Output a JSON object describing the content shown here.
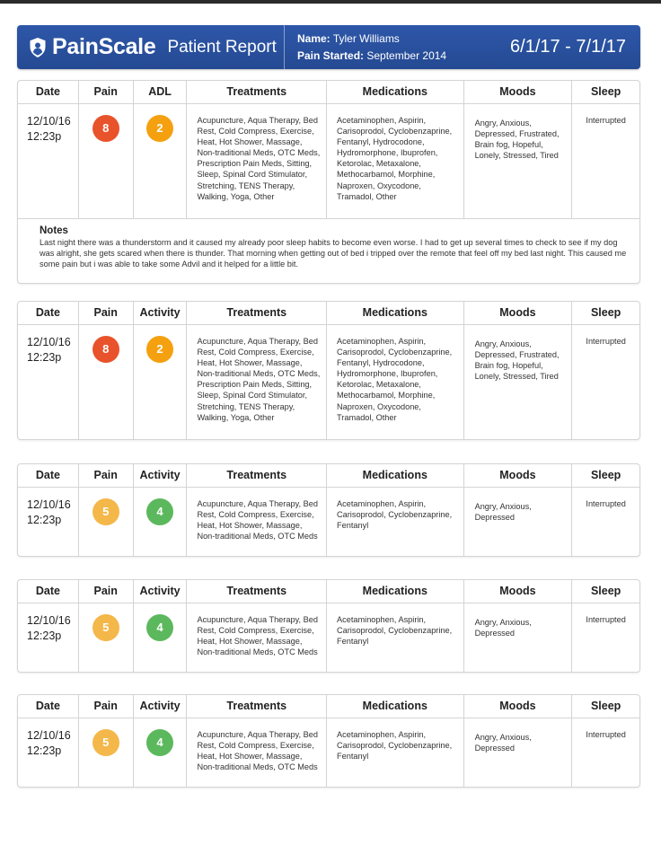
{
  "header": {
    "brand_name": "PainScale",
    "brand_sub": "Patient Report",
    "name_label": "Name:",
    "name_value": "Tyler Williams",
    "pain_started_label": "Pain Started:",
    "pain_started_value": "September 2014",
    "date_range": "6/1/17 - 7/1/17",
    "color": "#2b55a6"
  },
  "columns": {
    "date": "Date",
    "pain": "Pain",
    "treatments": "Treatments",
    "medications": "Medications",
    "moods": "Moods",
    "sleep": "Sleep"
  },
  "pain_colors": {
    "8": "#e8532c",
    "5": "#f4b74a",
    "2": "#f5a623",
    "4": "#5cb85c"
  },
  "entries": [
    {
      "activity_header": "ADL",
      "date": "12/10/16",
      "time": "12:23p",
      "pain": "8",
      "pain_color": "#e8532c",
      "activity": "2",
      "activity_color": "#f5a00f",
      "treatments": "Acupuncture, Aqua Therapy, Bed Rest, Cold Compress, Exercise, Heat, Hot Shower, Massage, Non-traditional Meds, OTC Meds, Prescription Pain Meds, Sitting, Sleep, Spinal Cord Stimulator, Stretching, TENS Therapy, Walking, Yoga, Other",
      "medications": "Acetaminophen, Aspirin, Carisoprodol, Cyclobenzaprine, Fentanyl, Hydrocodone, Hydromorphone, Ibuprofen, Ketorolac, Metaxalone, Methocarbamol, Morphine, Naproxen, Oxycodone, Tramadol, Other",
      "moods": "Angry, Anxious, Depressed, Frustrated, Brain fog, Hopeful, Lonely, Stressed, Tired",
      "sleep": "Interrupted",
      "notes_title": "Notes",
      "notes": "Last night there was a thunderstorm and it caused my already poor sleep habits to become even worse. I had to get up several times to check to see if my dog was alright, she gets scared when there is thunder. That morning when getting out of bed i tripped over the remote that feel off my bed last night. This caused me some pain but i was able to take some Advil and it helped for a little bit."
    },
    {
      "activity_header": "Activity",
      "date": "12/10/16",
      "time": "12:23p",
      "pain": "8",
      "pain_color": "#e8532c",
      "activity": "2",
      "activity_color": "#f5a00f",
      "treatments": "Acupuncture, Aqua Therapy, Bed Rest, Cold Compress, Exercise, Heat, Hot Shower, Massage, Non-traditional Meds, OTC Meds, Prescription Pain Meds, Sitting, Sleep, Spinal Cord Stimulator, Stretching, TENS Therapy, Walking, Yoga, Other",
      "medications": "Acetaminophen, Aspirin, Carisoprodol, Cyclobenzaprine, Fentanyl, Hydrocodone, Hydromorphone, Ibuprofen, Ketorolac, Metaxalone, Methocarbamol, Morphine, Naproxen, Oxycodone, Tramadol, Other",
      "moods": "Angry, Anxious, Depressed, Frustrated, Brain fog, Hopeful, Lonely, Stressed, Tired",
      "sleep": "Interrupted"
    },
    {
      "activity_header": "Activity",
      "date": "12/10/16",
      "time": "12:23p",
      "pain": "5",
      "pain_color": "#f4b74a",
      "activity": "4",
      "activity_color": "#5cb85c",
      "treatments": "Acupuncture, Aqua Therapy, Bed Rest, Cold Compress, Exercise, Heat, Hot Shower, Massage, Non-traditional Meds, OTC Meds",
      "medications": "Acetaminophen, Aspirin, Carisoprodol, Cyclobenzaprine, Fentanyl",
      "moods": "Angry, Anxious, Depressed",
      "sleep": "Interrupted"
    },
    {
      "activity_header": "Activity",
      "date": "12/10/16",
      "time": "12:23p",
      "pain": "5",
      "pain_color": "#f4b74a",
      "activity": "4",
      "activity_color": "#5cb85c",
      "treatments": "Acupuncture, Aqua Therapy, Bed Rest, Cold Compress, Exercise, Heat, Hot Shower, Massage, Non-traditional Meds, OTC Meds",
      "medications": "Acetaminophen, Aspirin, Carisoprodol, Cyclobenzaprine, Fentanyl",
      "moods": "Angry, Anxious, Depressed",
      "sleep": "Interrupted"
    },
    {
      "activity_header": "Activity",
      "date": "12/10/16",
      "time": "12:23p",
      "pain": "5",
      "pain_color": "#f4b74a",
      "activity": "4",
      "activity_color": "#5cb85c",
      "treatments": "Acupuncture, Aqua Therapy, Bed Rest, Cold Compress, Exercise, Heat, Hot Shower, Massage, Non-traditional Meds, OTC Meds",
      "medications": "Acetaminophen, Aspirin, Carisoprodol, Cyclobenzaprine, Fentanyl",
      "moods": "Angry, Anxious, Depressed",
      "sleep": "Interrupted"
    }
  ]
}
